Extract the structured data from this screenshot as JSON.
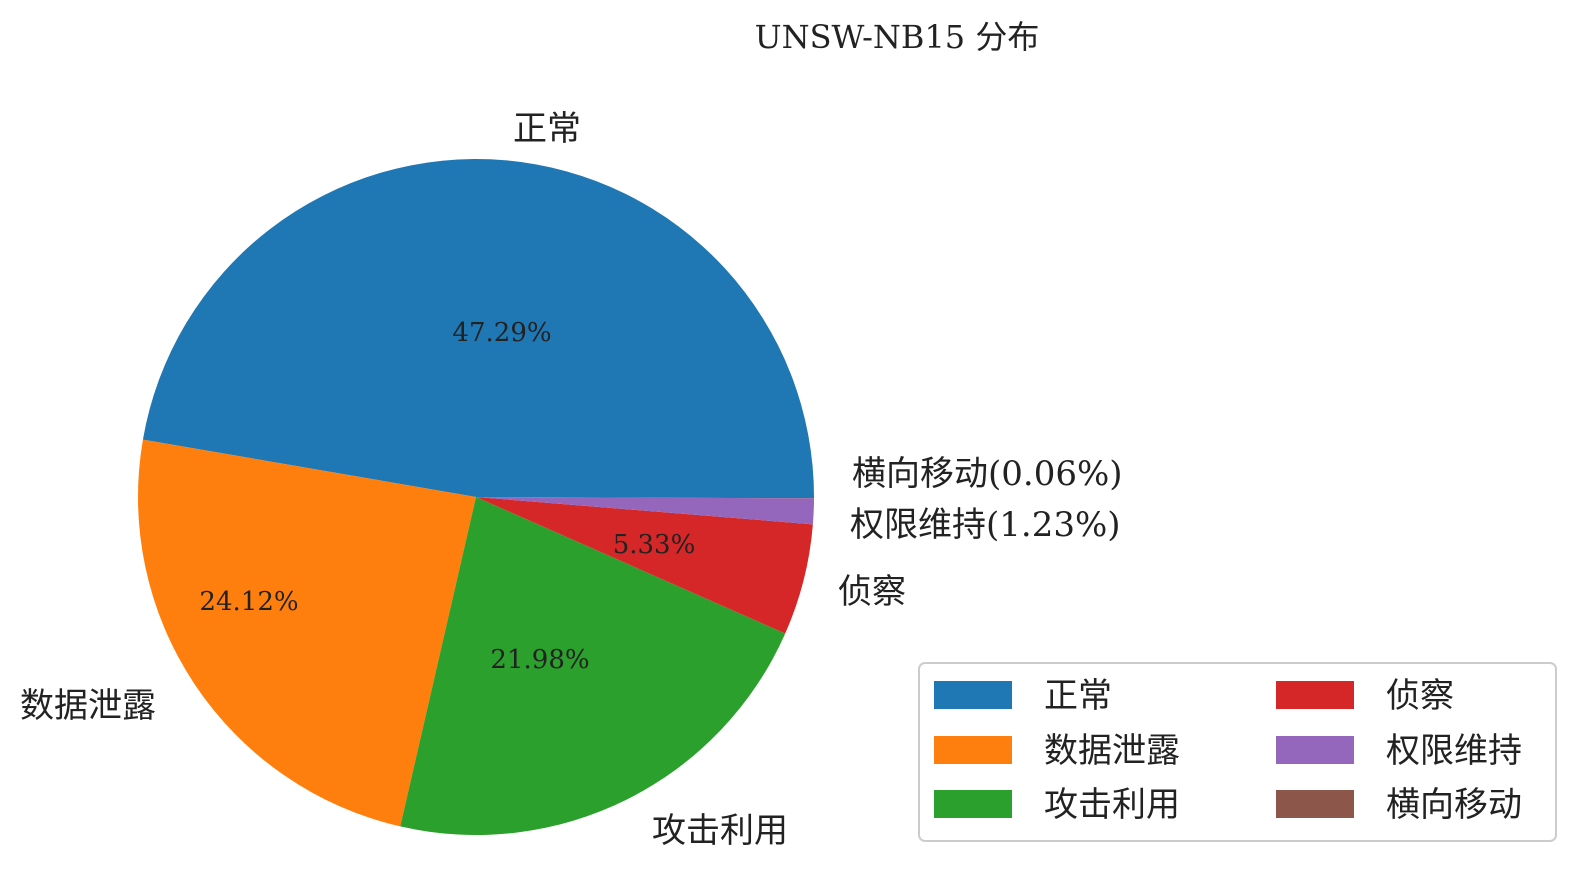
{
  "chart_data": {
    "type": "pie",
    "title": "UNSW-NB15 分布",
    "slices": [
      {
        "label": "正常",
        "value": 47.29,
        "pct_label": "47.29%",
        "outer_label": "正常",
        "color": "#1f77b4"
      },
      {
        "label": "数据泄露",
        "value": 24.12,
        "pct_label": "24.12%",
        "outer_label": "数据泄露",
        "color": "#ff7f0e"
      },
      {
        "label": "攻击利用",
        "value": 21.98,
        "pct_label": "21.98%",
        "outer_label": "攻击利用",
        "color": "#2ca02c"
      },
      {
        "label": "侦察",
        "value": 5.33,
        "pct_label": "5.33%",
        "outer_label": "侦察",
        "color": "#d62728"
      },
      {
        "label": "权限维持",
        "value": 1.23,
        "pct_label": "",
        "outer_label": "权限维持(1.23%)",
        "color": "#9467bd"
      },
      {
        "label": "横向移动",
        "value": 0.06,
        "pct_label": "",
        "outer_label": "横向移动(0.06%)",
        "color": "#8c564b"
      }
    ],
    "start_angle_deg": 0,
    "direction": "counterclockwise",
    "legend": {
      "placement": "lower-right",
      "columns": [
        [
          "正常",
          "数据泄露",
          "攻击利用"
        ],
        [
          "侦察",
          "权限维持",
          "横向移动"
        ]
      ]
    }
  }
}
